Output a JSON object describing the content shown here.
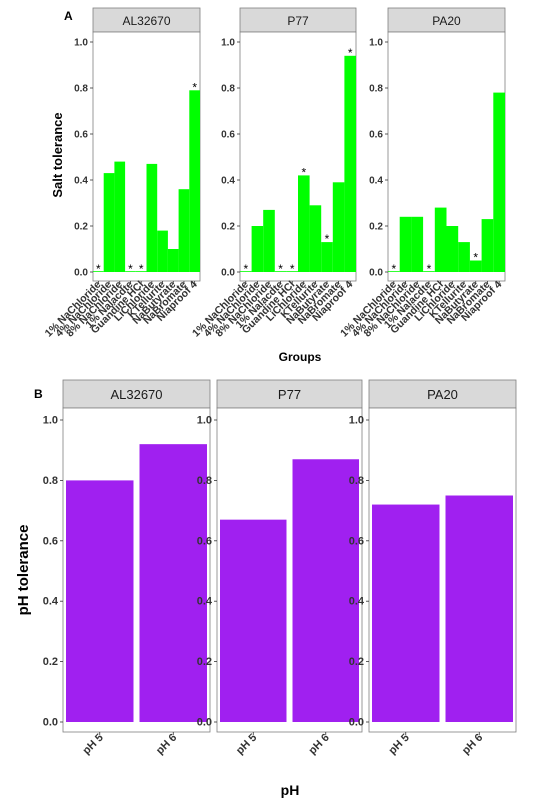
{
  "chart_data": [
    {
      "type": "bar",
      "panel_label": "A",
      "ylabel": "Salt tolerance",
      "xlabel": "Groups",
      "ylim": [
        0,
        1.1
      ],
      "yticks": [
        "0.0",
        "0.2",
        "0.4",
        "0.6",
        "0.8",
        "1.0"
      ],
      "ytick_values": [
        0,
        0.2,
        0.4,
        0.6,
        0.8,
        1.0
      ],
      "grid": false,
      "bar_color": "#00FF00",
      "categories": [
        "1% NaChloride",
        "4% NaChloride",
        "8% NaChloride",
        "1% Nalacdte",
        "Guandine HCl",
        "LiChloride",
        "KTellurite",
        "NaButyrate",
        "NaBromate",
        "Niaproof 4"
      ],
      "facets": [
        {
          "name": "AL32670",
          "values": [
            0.0,
            0.43,
            0.48,
            0.0,
            0.0,
            0.47,
            0.18,
            0.1,
            0.36,
            0.79
          ],
          "sig": [
            true,
            false,
            false,
            true,
            true,
            false,
            false,
            false,
            false,
            true
          ]
        },
        {
          "name": "P77",
          "values": [
            0.0,
            0.2,
            0.27,
            0.0,
            0.0,
            0.42,
            0.29,
            0.13,
            0.39,
            0.94
          ],
          "sig": [
            true,
            false,
            false,
            true,
            true,
            true,
            false,
            true,
            false,
            true
          ]
        },
        {
          "name": "PA20",
          "values": [
            0.0,
            0.24,
            0.24,
            0.0,
            0.28,
            0.2,
            0.13,
            0.05,
            0.23,
            0.78
          ],
          "sig": [
            true,
            false,
            false,
            true,
            false,
            false,
            false,
            true,
            false,
            false
          ]
        }
      ],
      "sig_marker": "*"
    },
    {
      "type": "bar",
      "panel_label": "B",
      "ylabel": "pH tolerance",
      "xlabel": "pH",
      "ylim": [
        0,
        1.05
      ],
      "yticks": [
        "0.0",
        "0.2",
        "0.4",
        "0.6",
        "0.8",
        "1.0"
      ],
      "ytick_values": [
        0,
        0.2,
        0.4,
        0.6,
        0.8,
        1.0
      ],
      "grid": false,
      "bar_color": "#A020F0",
      "categories": [
        "pH 5",
        "pH 6"
      ],
      "facets": [
        {
          "name": "AL32670",
          "values": [
            0.8,
            0.92
          ]
        },
        {
          "name": "P77",
          "values": [
            0.67,
            0.87
          ]
        },
        {
          "name": "PA20",
          "values": [
            0.72,
            0.75
          ]
        }
      ]
    }
  ]
}
